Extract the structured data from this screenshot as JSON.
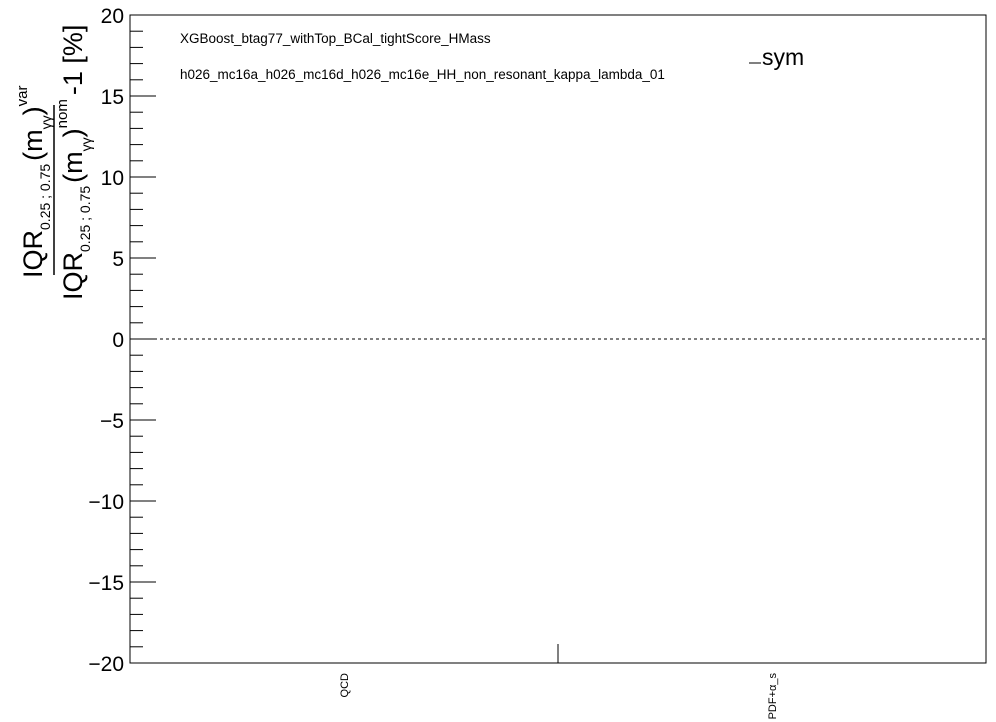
{
  "chart_data": {
    "type": "bar",
    "categories": [
      "QCD",
      "PDF+α_s"
    ],
    "series": [
      {
        "name": "sym",
        "values": [
          null,
          null
        ]
      }
    ],
    "ylim": [
      -20,
      20
    ],
    "y_major_ticks": [
      20,
      15,
      10,
      5,
      0,
      -5,
      -10,
      -15,
      -20
    ],
    "y_tick_labels": [
      "20",
      "15",
      "10",
      "5",
      "0",
      "−5",
      "−10",
      "−15",
      "−20"
    ],
    "reference_line": {
      "y": 0,
      "style": "dashed"
    },
    "annotations": [
      "XGBoost_btag77_withTop_BCal_tightScore_HMass",
      "h026_mc16a_h026_mc16d_h026_mc16e_HH_non_resonant_kappa_lambda_01"
    ],
    "legend": {
      "entries": [
        "sym"
      ],
      "placement": "top-right"
    },
    "ylabel": {
      "num_main": "IQR",
      "num_sub": "0.25 ; 0.75",
      "num_arg": "(m",
      "num_arg_sub": "γγ",
      "num_arg_close": ")",
      "num_sup": "var",
      "den_main": "IQR",
      "den_sub": "0.25 ; 0.75",
      "den_arg": "(m",
      "den_arg_sub": "γγ",
      "den_arg_close": ")",
      "den_sup": "nom",
      "suffix": "-1 [%]"
    },
    "grid": false
  }
}
